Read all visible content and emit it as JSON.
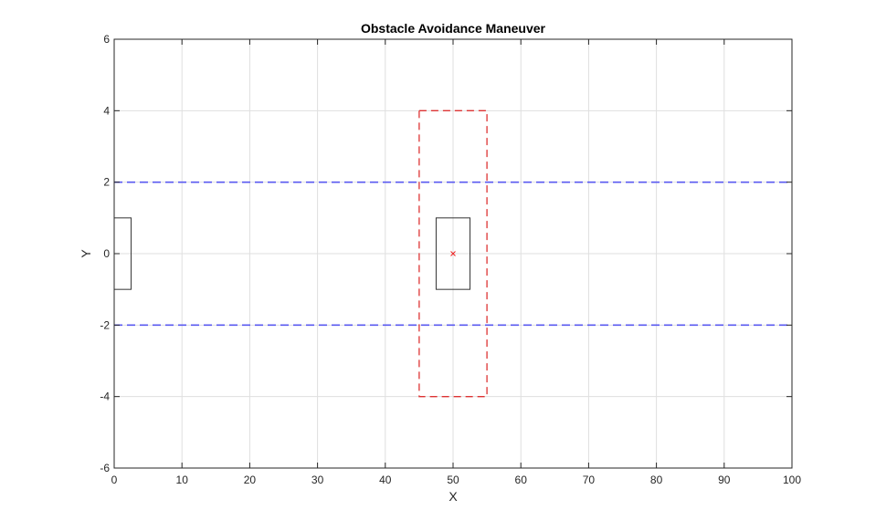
{
  "chart_data": {
    "type": "line",
    "title": "Obstacle Avoidance Maneuver",
    "xlabel": "X",
    "ylabel": "Y",
    "xlim": [
      0,
      100
    ],
    "ylim": [
      -6,
      6
    ],
    "xticks": [
      0,
      10,
      20,
      30,
      40,
      50,
      60,
      70,
      80,
      90,
      100
    ],
    "yticks": [
      -6,
      -4,
      -2,
      0,
      2,
      4,
      6
    ],
    "grid": true,
    "colors": {
      "grid": "#dfdfdf",
      "axes": "#262626",
      "lane_boundary": "#5a5af0",
      "safety_zone": "#dd3333",
      "vehicle_outline": "#333333",
      "ego_marker": "#22aa22",
      "obstacle_marker": "#ee2222"
    },
    "lane_boundaries": [
      {
        "y": 2,
        "x": [
          0,
          100
        ]
      },
      {
        "y": -2,
        "x": [
          0,
          100
        ]
      }
    ],
    "ego_vehicle": {
      "outline": {
        "x": [
          -2.5,
          2.5
        ],
        "y": [
          -1,
          1
        ]
      },
      "center": {
        "x": 0,
        "y": 0
      }
    },
    "obstacle": {
      "outline": {
        "x": [
          47.5,
          52.5
        ],
        "y": [
          -1,
          1
        ]
      },
      "center": {
        "x": 50,
        "y": 0
      }
    },
    "safety_zone": {
      "x": [
        45,
        55
      ],
      "y": [
        -4,
        4
      ]
    }
  }
}
